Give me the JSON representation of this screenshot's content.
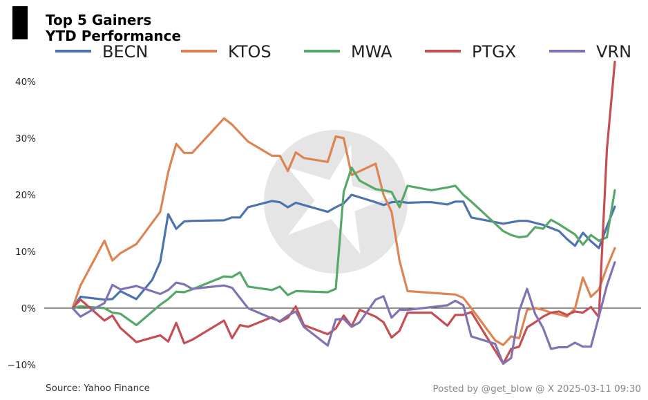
{
  "chart_data": {
    "type": "line",
    "title": "Top 5 Gainers",
    "subtitle": "YTD Performance",
    "ylim": [
      -12,
      45
    ],
    "xlim": [
      0,
      68
    ],
    "yticks": [
      -10,
      0,
      10,
      20,
      30,
      40
    ],
    "ytick_labels": [
      "−10%",
      "0%",
      "10%",
      "20%",
      "30%",
      "40%"
    ],
    "grid": false,
    "zero_line": true,
    "legend_position": "top",
    "source": "Source: Yahoo Finance",
    "credit": "Posted by @get_blow @ X 2025-03-11 09:30",
    "series": [
      {
        "name": "BECN",
        "color": "#4c72b0",
        "x": [
          0,
          1,
          4,
          5,
          6,
          8,
          10,
          11,
          12,
          13,
          14,
          15,
          19,
          20,
          21,
          22,
          25,
          26,
          27,
          28,
          32,
          33,
          34,
          35,
          38,
          39,
          40,
          41,
          42,
          44,
          45,
          47,
          48,
          49,
          50,
          54,
          56,
          57,
          59,
          61,
          62,
          63,
          64,
          65,
          66,
          67,
          68
        ],
        "values": [
          0,
          2,
          1.5,
          1.6,
          3,
          1.6,
          5,
          8.2,
          16.6,
          14,
          15.3,
          15.4,
          15.5,
          16,
          16,
          17.8,
          18.9,
          18.7,
          17.8,
          18.6,
          17,
          17.8,
          18.5,
          20,
          18.7,
          18.2,
          18.7,
          18.8,
          18.6,
          18.7,
          18.7,
          18.3,
          18.8,
          18.8,
          16,
          14.9,
          15.4,
          15.4,
          14.7,
          13.6,
          12.2,
          11,
          13.3,
          11.8,
          10.6,
          14.4,
          17.9
        ]
      },
      {
        "name": "KTOS",
        "color": "#dd8452",
        "x": [
          0,
          1,
          4,
          5,
          6,
          8,
          11,
          12,
          13,
          14,
          15,
          19,
          20,
          22,
          25,
          26,
          27,
          28,
          29,
          32,
          33,
          34,
          35,
          38,
          39,
          40,
          41,
          42,
          43,
          44,
          45,
          46,
          47,
          48,
          49,
          50,
          53,
          54,
          55,
          56,
          57,
          58,
          59,
          60,
          61,
          62,
          63,
          64,
          65,
          66,
          67,
          68
        ],
        "values": [
          0,
          4,
          11.9,
          8.4,
          9.7,
          11.3,
          17,
          24,
          29,
          27.4,
          27.4,
          33.5,
          32.4,
          29.4,
          26.9,
          26.9,
          24.2,
          27.5,
          26.5,
          25.8,
          30.3,
          30,
          23.5,
          25.5,
          20,
          17,
          8.4,
          3,
          2.9,
          2.8,
          2.7,
          2.6,
          2.5,
          2.4,
          1.8,
          0,
          -5.7,
          -6.5,
          -5,
          -5.3,
          -0.3,
          0,
          -0.3,
          -0.8,
          -1.1,
          -1.5,
          -0.1,
          5.4,
          2,
          3.3,
          7.2,
          10.6
        ]
      },
      {
        "name": "MWA",
        "color": "#55a868",
        "x": [
          0,
          1,
          4,
          5,
          6,
          8,
          11,
          12,
          13,
          14,
          15,
          19,
          20,
          21,
          22,
          25,
          26,
          27,
          28,
          32,
          33,
          34,
          35,
          36,
          38,
          39,
          40,
          41,
          42,
          45,
          47,
          48,
          49,
          50,
          54,
          55,
          56,
          57,
          58,
          59,
          60,
          61,
          62,
          63,
          64,
          65,
          66,
          67,
          68
        ],
        "values": [
          0,
          0.3,
          0,
          -0.8,
          -1,
          -3,
          0.6,
          1.6,
          2.9,
          2.8,
          3.3,
          5.6,
          5.5,
          6.3,
          3.8,
          3.2,
          3.8,
          2.3,
          3,
          2.8,
          3.4,
          20.5,
          24.8,
          22.5,
          21,
          20.8,
          20.5,
          17.8,
          21.6,
          20.8,
          21.3,
          21.6,
          20,
          18.8,
          13.6,
          12.9,
          12.5,
          12.7,
          14.3,
          14,
          15.6,
          14.8,
          13.9,
          13,
          11.2,
          12.9,
          11.9,
          12.5,
          20.8
        ]
      },
      {
        "name": "PTGX",
        "color": "#c44e52",
        "x": [
          0,
          1,
          4,
          5,
          6,
          8,
          11,
          12,
          13,
          14,
          15,
          19,
          20,
          21,
          22,
          25,
          26,
          27,
          28,
          29,
          32,
          33,
          34,
          35,
          36,
          38,
          39,
          40,
          41,
          42,
          45,
          47,
          48,
          49,
          50,
          53,
          54,
          55,
          56,
          57,
          58,
          59,
          60,
          61,
          62,
          63,
          64,
          65,
          66,
          67,
          68
        ],
        "values": [
          0,
          1.5,
          -2.2,
          -1.3,
          -3.5,
          -6,
          -4.8,
          -5.9,
          -2.6,
          -6.2,
          -5.6,
          -2.2,
          -5.3,
          -3,
          -3.3,
          -1.6,
          -2.4,
          -1.7,
          0.3,
          -3,
          -4.6,
          -3.6,
          -1.3,
          -3.2,
          -0.3,
          -1.5,
          -2.5,
          -5.2,
          -4,
          -0.8,
          -0.8,
          -3.1,
          -1.2,
          -1.2,
          -0.7,
          -7.5,
          -9.8,
          -7.2,
          -6.8,
          -3.4,
          -2.5,
          -1.5,
          -0.8,
          -0.6,
          -1.2,
          -0.6,
          -0.8,
          0.2,
          -1.6,
          28,
          43.5
        ]
      },
      {
        "name": "VRN",
        "color": "#8172b3",
        "x": [
          0,
          1,
          4,
          5,
          6,
          8,
          11,
          12,
          13,
          14,
          15,
          19,
          20,
          22,
          25,
          26,
          27,
          28,
          29,
          32,
          33,
          34,
          35,
          36,
          38,
          39,
          40,
          41,
          42,
          47,
          48,
          49,
          50,
          53,
          54,
          55,
          56,
          57,
          58,
          59,
          60,
          61,
          62,
          63,
          64,
          65,
          66,
          67,
          68
        ],
        "values": [
          0,
          -1.5,
          0.9,
          4.1,
          3.3,
          3.9,
          2.5,
          3.2,
          4.5,
          4.2,
          3.4,
          4,
          3.6,
          0,
          -1.8,
          -2.3,
          -1.3,
          -0.6,
          -3.3,
          -6.6,
          -2,
          -1.9,
          -3.3,
          -2.5,
          1.5,
          2.1,
          -1.7,
          -0.3,
          -0.3,
          0.5,
          1.3,
          0.5,
          -5,
          -6.3,
          -9.8,
          -8.8,
          -0.5,
          3.4,
          -1,
          -3.5,
          -7.2,
          -6.9,
          -6.9,
          -6.1,
          -6.8,
          -6.8,
          -1.5,
          4,
          8.1
        ]
      }
    ]
  }
}
